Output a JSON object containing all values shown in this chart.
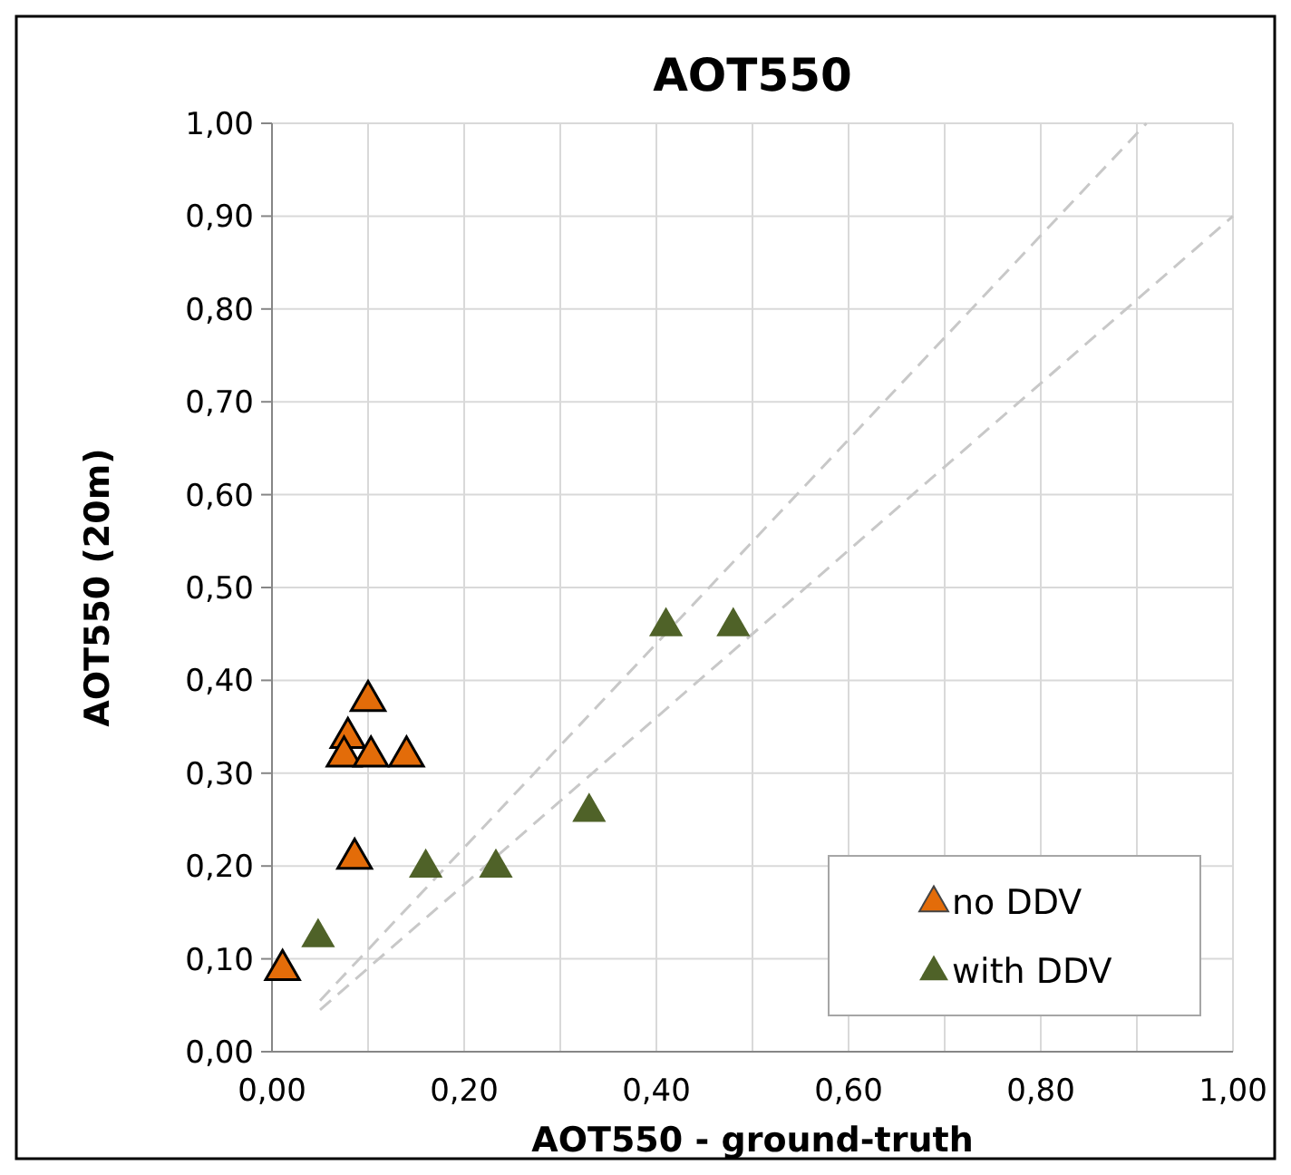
{
  "chart_data": {
    "type": "scatter",
    "title": "AOT550",
    "xlabel": "AOT550 - ground-truth",
    "ylabel": "AOT550 (20m)",
    "xlim": [
      0,
      1
    ],
    "ylim": [
      0,
      1
    ],
    "xticks": [
      {
        "value": 0,
        "label": "0,00"
      },
      {
        "value": 0.1,
        "label": null
      },
      {
        "value": 0.2,
        "label": "0,20"
      },
      {
        "value": 0.3,
        "label": null
      },
      {
        "value": 0.4,
        "label": "0,40"
      },
      {
        "value": 0.5,
        "label": null
      },
      {
        "value": 0.6,
        "label": "0,60"
      },
      {
        "value": 0.7,
        "label": null
      },
      {
        "value": 0.8,
        "label": "0,80"
      },
      {
        "value": 0.9,
        "label": null
      },
      {
        "value": 1,
        "label": "1,00"
      }
    ],
    "yticks": [
      {
        "value": 0,
        "label": "0,00"
      },
      {
        "value": 0.1,
        "label": "0,10"
      },
      {
        "value": 0.2,
        "label": "0,20"
      },
      {
        "value": 0.3,
        "label": "0,30"
      },
      {
        "value": 0.4,
        "label": "0,40"
      },
      {
        "value": 0.5,
        "label": "0,50"
      },
      {
        "value": 0.6,
        "label": "0,60"
      },
      {
        "value": 0.7,
        "label": "0,70"
      },
      {
        "value": 0.8,
        "label": "0,80"
      },
      {
        "value": 0.9,
        "label": "0,90"
      },
      {
        "value": 1,
        "label": "1,00"
      }
    ],
    "grid": true,
    "legend": "bottom right",
    "marker": "triangle",
    "series": [
      {
        "type": "line",
        "color": "#c8c8c8",
        "line_style": "dashed",
        "marker": "none",
        "x": [
          0.05,
          0.91
        ],
        "values": [
          0.055,
          1.0
        ]
      },
      {
        "type": "line",
        "color": "#c8c8c8",
        "line_style": "dashed",
        "marker": "none",
        "x": [
          0.05,
          1.0
        ],
        "values": [
          0.045,
          0.9
        ]
      },
      {
        "name": "no DDV",
        "color": "#e36c09",
        "x": [
          0.011,
          0.1,
          0.079,
          0.075,
          0.103,
          0.14,
          0.086
        ],
        "values": [
          0.09,
          0.38,
          0.34,
          0.32,
          0.32,
          0.32,
          0.21
        ]
      },
      {
        "name": "with DDV",
        "color": "#4f6228",
        "x": [
          0.048,
          0.16,
          0.233,
          0.33,
          0.41,
          0.48
        ],
        "values": [
          0.125,
          0.2,
          0.2,
          0.26,
          0.46,
          0.46
        ]
      }
    ]
  }
}
